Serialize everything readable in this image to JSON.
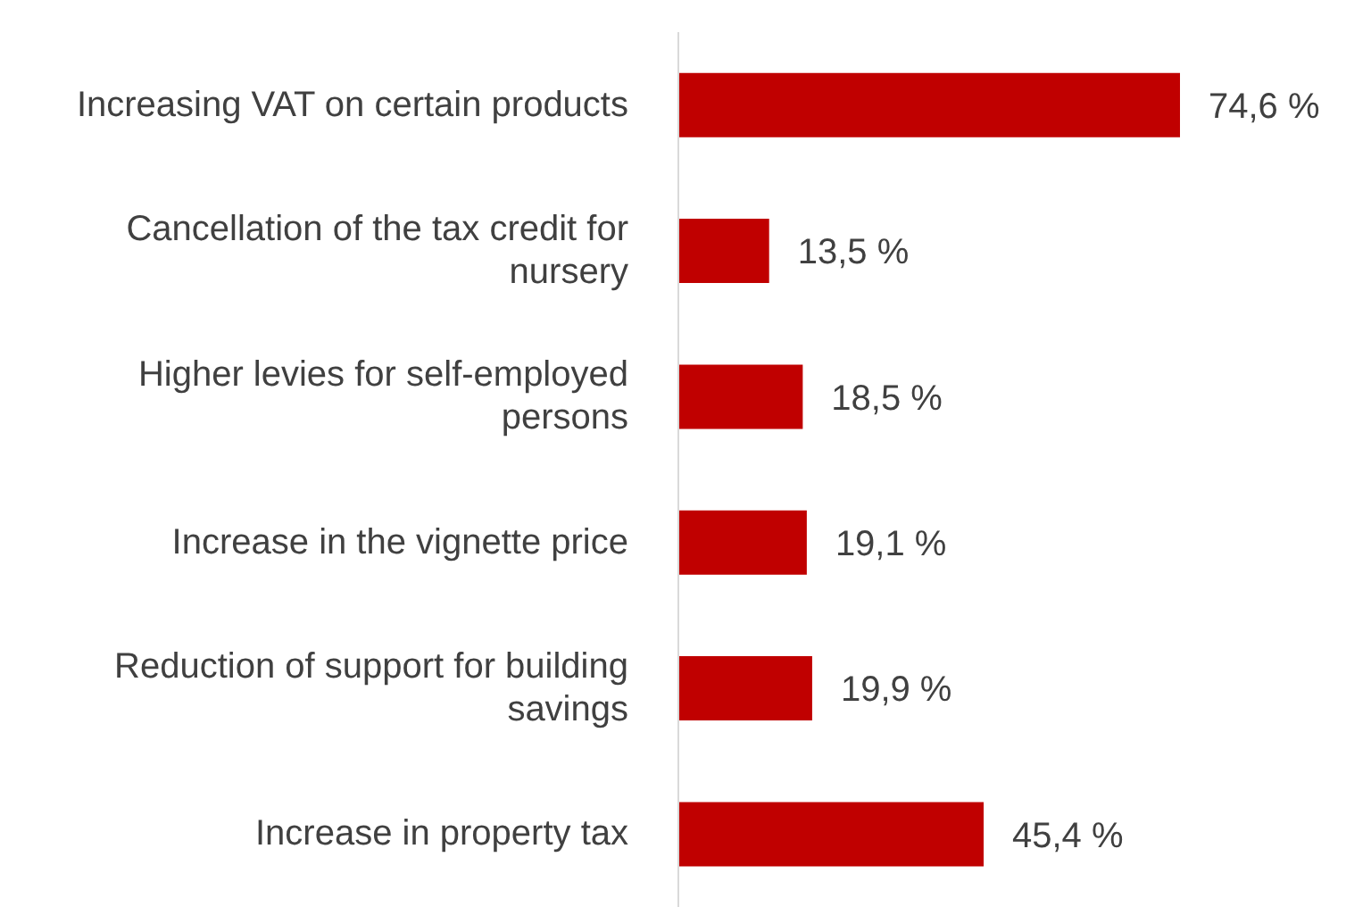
{
  "chart_data": {
    "type": "bar",
    "orientation": "horizontal",
    "categories": [
      "Increasing VAT on certain products",
      "Cancellation of the tax credit for nursery",
      "Higher levies for self-employed persons",
      "Increase in the vignette price",
      "Reduction of support for building savings",
      "Increase in property tax"
    ],
    "values": [
      74.6,
      13.5,
      18.5,
      19.1,
      19.9,
      45.4
    ],
    "value_labels": [
      "74,6 %",
      "13,5 %",
      "18,5 %",
      "19,1 %",
      "19,9 %",
      "45,4 %"
    ],
    "color": "#c00000",
    "grid": false,
    "legend": false
  }
}
